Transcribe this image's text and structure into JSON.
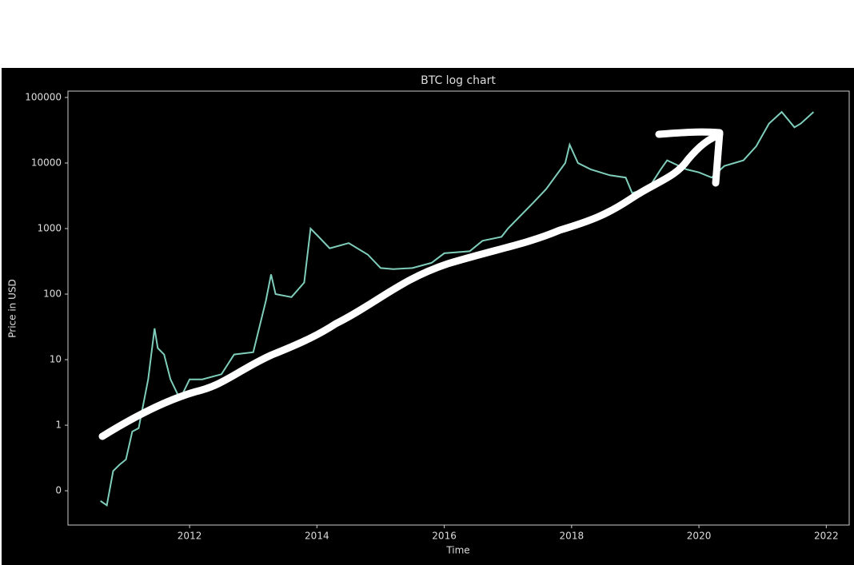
{
  "chart_data": {
    "type": "line",
    "title": "BTC log chart",
    "x_label": "Time",
    "y_label": "Price in USD",
    "log_y": true,
    "grid": false,
    "x": [
      2010.6,
      2010.7,
      2010.8,
      2010.9,
      2011.0,
      2011.1,
      2011.2,
      2011.35,
      2011.45,
      2011.5,
      2011.6,
      2011.7,
      2011.85,
      2012.0,
      2012.2,
      2012.5,
      2012.7,
      2013.0,
      2013.2,
      2013.28,
      2013.35,
      2013.6,
      2013.8,
      2013.9,
      2014.0,
      2014.2,
      2014.5,
      2014.8,
      2015.0,
      2015.2,
      2015.5,
      2015.8,
      2016.0,
      2016.4,
      2016.6,
      2016.9,
      2017.0,
      2017.4,
      2017.6,
      2017.9,
      2017.97,
      2018.1,
      2018.3,
      2018.6,
      2018.85,
      2018.95,
      2019.2,
      2019.4,
      2019.5,
      2019.8,
      2020.0,
      2020.2,
      2020.4,
      2020.7,
      2020.9,
      2021.1,
      2021.3,
      2021.5,
      2021.6,
      2021.8
    ],
    "series": [
      {
        "name": "BTC",
        "color": "#7fcdbb",
        "values": [
          0.07,
          0.06,
          0.2,
          0.25,
          0.3,
          0.8,
          0.9,
          5,
          30,
          15,
          12,
          5,
          2.5,
          5,
          5,
          6,
          12,
          13,
          80,
          200,
          100,
          90,
          150,
          1000,
          800,
          500,
          600,
          400,
          250,
          240,
          250,
          300,
          420,
          450,
          650,
          750,
          1000,
          2500,
          4000,
          10000,
          19000,
          10000,
          8000,
          6500,
          6000,
          3500,
          4000,
          8000,
          11000,
          8000,
          7200,
          6000,
          9000,
          11000,
          18000,
          40000,
          60000,
          35000,
          40000,
          60000
        ]
      }
    ],
    "xlim": [
      2010.09,
      2022.36
    ],
    "xticks": [
      2012,
      2014,
      2016,
      2018,
      2020,
      2022
    ],
    "ylim": [
      0.03,
      125000
    ],
    "yticks": [
      {
        "value": 0.1,
        "label": "0"
      },
      1,
      10,
      100,
      1000,
      10000,
      100000
    ]
  }
}
